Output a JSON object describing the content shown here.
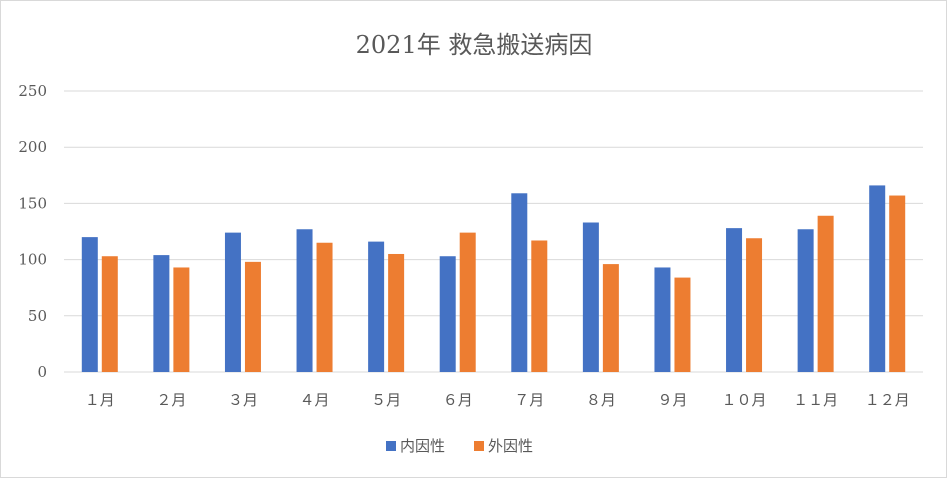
{
  "chart_data": {
    "type": "bar",
    "title": "2021年 救急搬送病因",
    "categories": [
      "１月",
      "２月",
      "３月",
      "４月",
      "５月",
      "６月",
      "７月",
      "８月",
      "９月",
      "１０月",
      "１１月",
      "１２月"
    ],
    "series": [
      {
        "name": "内因性",
        "color": "#4472C4",
        "values": [
          120,
          104,
          124,
          127,
          116,
          103,
          159,
          133,
          93,
          128,
          127,
          166
        ]
      },
      {
        "name": "外因性",
        "color": "#ED7D31",
        "values": [
          103,
          93,
          98,
          115,
          105,
          124,
          117,
          96,
          84,
          119,
          139,
          157
        ]
      }
    ],
    "y_ticks": [
      "0",
      "50",
      "100",
      "150",
      "200",
      "250"
    ],
    "ylim": [
      0,
      250
    ],
    "grid": true,
    "legend_position": "bottom"
  }
}
